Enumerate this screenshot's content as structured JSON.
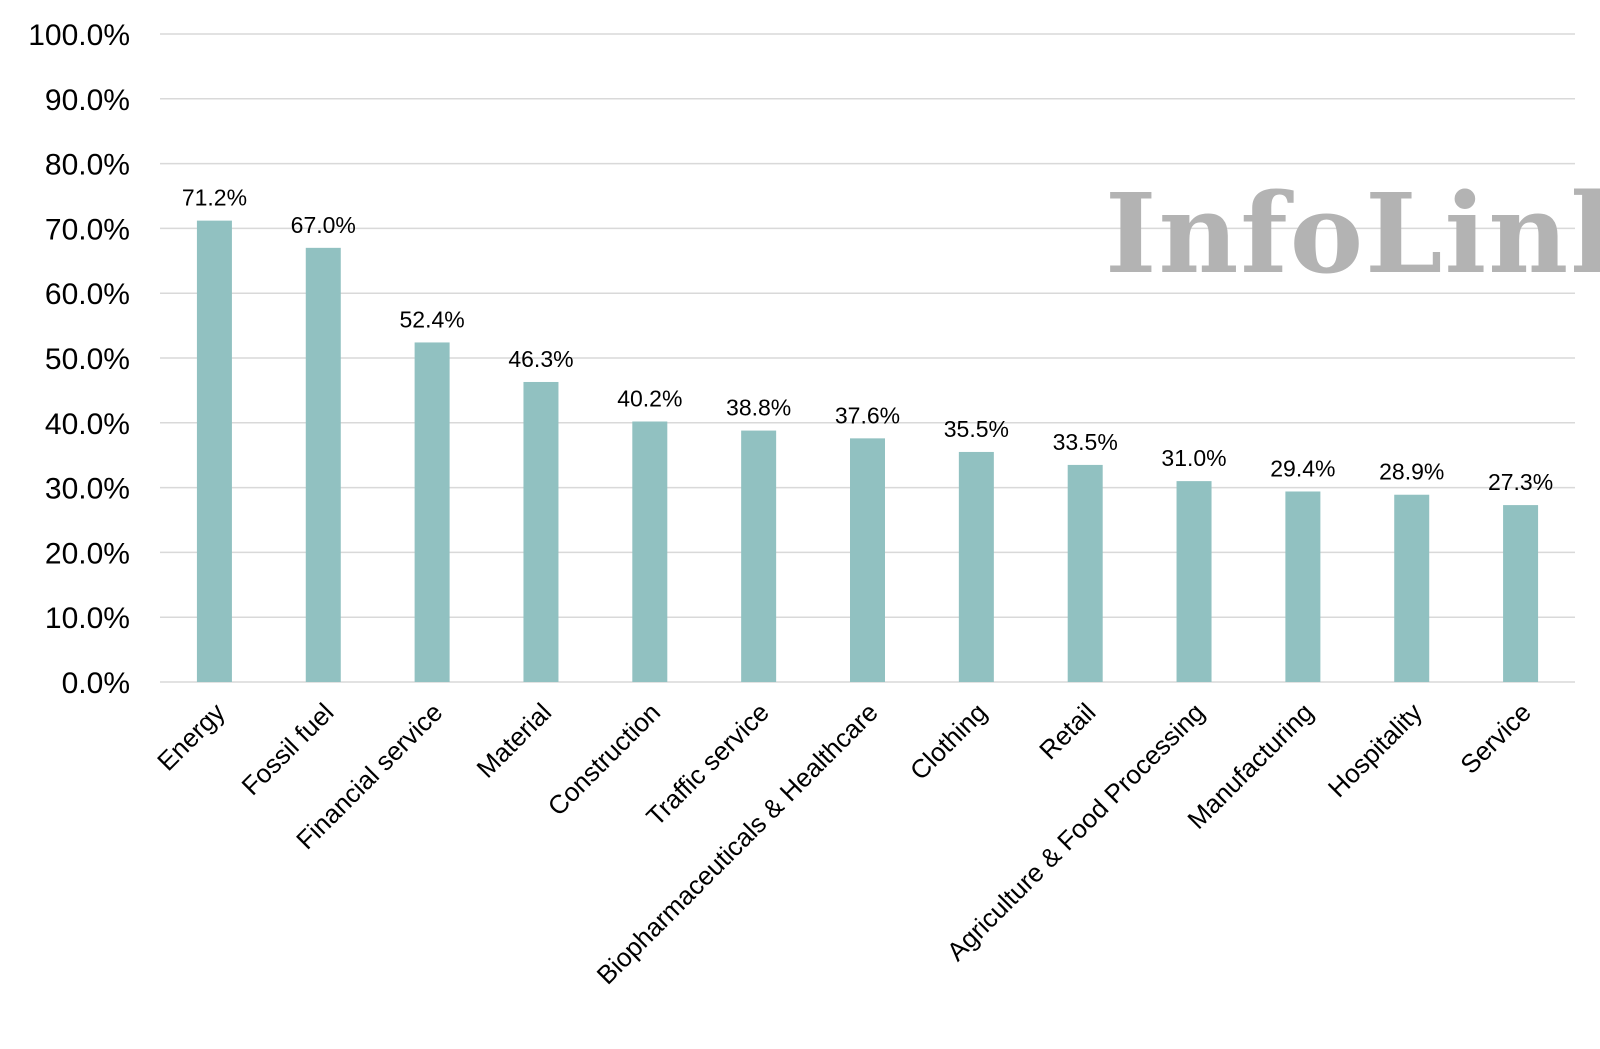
{
  "watermark": "InfoLink",
  "chart_data": {
    "type": "bar",
    "categories": [
      "Energy",
      "Fossil fuel",
      "Financial service",
      "Material",
      "Construction",
      "Traffic service",
      "Biopharmaceuticals & Healthcare",
      "Clothing",
      "Retail",
      "Agriculture & Food Processing",
      "Manufacturing",
      "Hospitality",
      "Service"
    ],
    "values": [
      71.2,
      67.0,
      52.4,
      46.3,
      40.2,
      38.8,
      37.6,
      35.5,
      33.5,
      31.0,
      29.4,
      28.9,
      27.3
    ],
    "data_labels": [
      "71.2%",
      "67.0%",
      "52.4%",
      "46.3%",
      "40.2%",
      "38.8%",
      "37.6%",
      "35.5%",
      "33.5%",
      "31.0%",
      "29.4%",
      "28.9%",
      "27.3%"
    ],
    "yticks": [
      "0.0%",
      "10.0%",
      "20.0%",
      "30.0%",
      "40.0%",
      "50.0%",
      "60.0%",
      "70.0%",
      "80.0%",
      "90.0%",
      "100.0%"
    ],
    "ylim": [
      0,
      100
    ],
    "title": "",
    "xlabel": "",
    "ylabel": "",
    "grid": true,
    "legend": "none",
    "bar_color": "#91c1c1",
    "grid_color": "#d9d9d9",
    "watermark_color": "#b3b3b3"
  }
}
